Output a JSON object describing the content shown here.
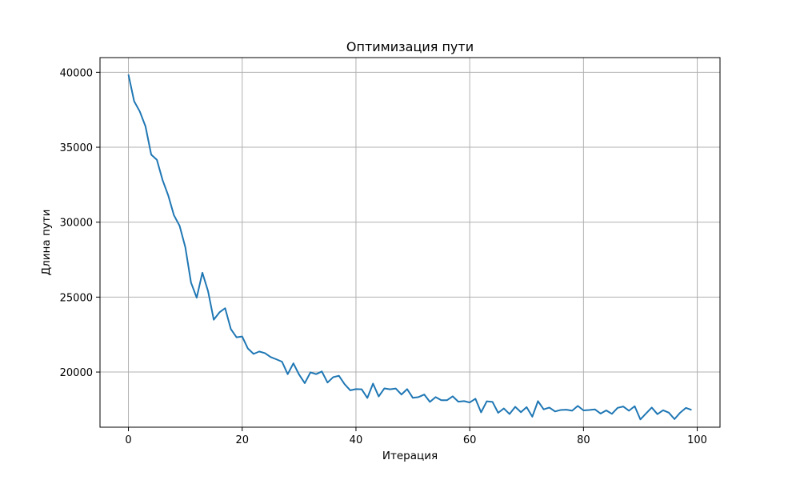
{
  "chart_data": {
    "type": "line",
    "title": "Оптимизация пути",
    "xlabel": "Итерация",
    "ylabel": "Длина пути",
    "xlim": [
      -5,
      104
    ],
    "ylim": [
      16320,
      40980
    ],
    "xticks": [
      0,
      20,
      40,
      60,
      80,
      100
    ],
    "yticks": [
      20000,
      25000,
      30000,
      35000,
      40000
    ],
    "grid": true,
    "series": [
      {
        "color": "#1f77b4",
        "x": [
          0,
          1,
          2,
          3,
          4,
          5,
          6,
          7,
          8,
          9,
          10,
          11,
          12,
          13,
          14,
          15,
          16,
          17,
          18,
          19,
          20,
          21,
          22,
          23,
          24,
          25,
          26,
          27,
          28,
          29,
          30,
          31,
          32,
          33,
          34,
          35,
          36,
          37,
          38,
          39,
          40,
          41,
          42,
          43,
          44,
          45,
          46,
          47,
          48,
          49,
          50,
          51,
          52,
          53,
          54,
          55,
          56,
          57,
          58,
          59,
          60,
          61,
          62,
          63,
          64,
          65,
          66,
          67,
          68,
          69,
          70,
          71,
          72,
          73,
          74,
          75,
          76,
          77,
          78,
          79,
          80,
          81,
          82,
          83,
          84,
          85,
          86,
          87,
          88,
          89,
          90,
          91,
          92,
          93,
          94,
          95,
          96,
          97,
          98,
          99
        ],
        "values": [
          39850,
          38070,
          37380,
          36390,
          34510,
          34160,
          32810,
          31780,
          30460,
          29750,
          28330,
          25970,
          24960,
          26630,
          25390,
          23490,
          23980,
          24260,
          22870,
          22320,
          22370,
          21570,
          21210,
          21370,
          21260,
          21000,
          20850,
          20690,
          19860,
          20580,
          19830,
          19260,
          19980,
          19860,
          20040,
          19300,
          19660,
          19750,
          19190,
          18780,
          18860,
          18850,
          18270,
          19230,
          18370,
          18910,
          18850,
          18900,
          18500,
          18860,
          18280,
          18330,
          18500,
          18010,
          18330,
          18120,
          18120,
          18380,
          18020,
          18060,
          17970,
          18220,
          17310,
          18050,
          18010,
          17280,
          17570,
          17200,
          17680,
          17320,
          17660,
          17020,
          18060,
          17510,
          17630,
          17370,
          17470,
          17490,
          17420,
          17740,
          17440,
          17470,
          17510,
          17230,
          17440,
          17210,
          17610,
          17700,
          17420,
          17720,
          16840,
          17240,
          17630,
          17190,
          17450,
          17290,
          16860,
          17290,
          17610,
          17470
        ]
      }
    ]
  }
}
